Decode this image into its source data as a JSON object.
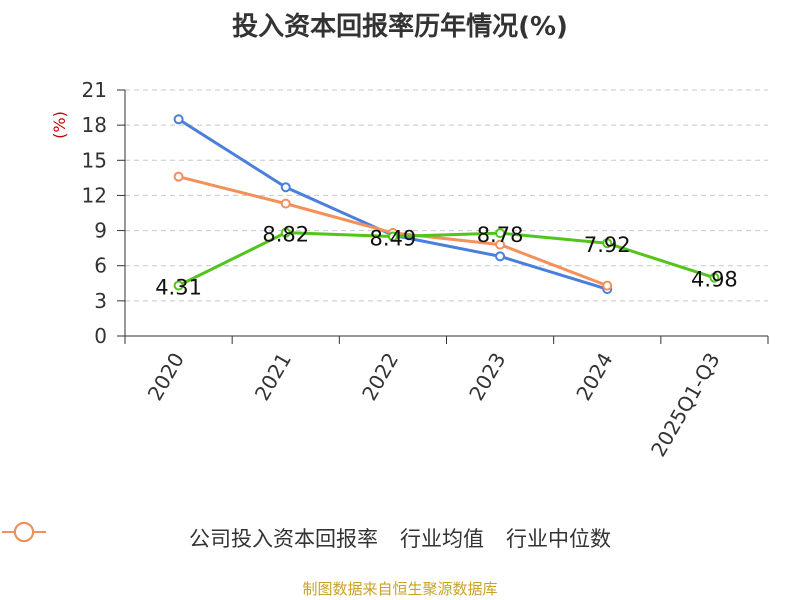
{
  "chart_data": {
    "type": "line",
    "title": "投入资本回报率历年情况(%)",
    "ylabel": "(%)",
    "xlabel": "",
    "categories": [
      "2020",
      "2021",
      "2022",
      "2023",
      "2024",
      "2025Q1-Q3"
    ],
    "ylim": [
      0,
      21
    ],
    "yticks": [
      0,
      3,
      6,
      9,
      12,
      15,
      18,
      21
    ],
    "grid": true,
    "legend_position": "bottom",
    "series": [
      {
        "name": "公司投入资本回报率",
        "color": "#52c41a",
        "values": [
          4.31,
          8.82,
          8.49,
          8.78,
          7.92,
          4.98
        ],
        "labels": [
          "4.31",
          "8.82",
          "8.49",
          "8.78",
          "7.92",
          "4.98"
        ]
      },
      {
        "name": "行业均值",
        "color": "#4a7fdb",
        "values": [
          18.5,
          12.7,
          8.6,
          6.8,
          4.0,
          null
        ]
      },
      {
        "name": "行业中位数",
        "color": "#f4905a",
        "values": [
          13.6,
          11.3,
          8.8,
          7.8,
          4.3,
          null
        ]
      }
    ]
  },
  "source": "制图数据来自恒生聚源数据库"
}
